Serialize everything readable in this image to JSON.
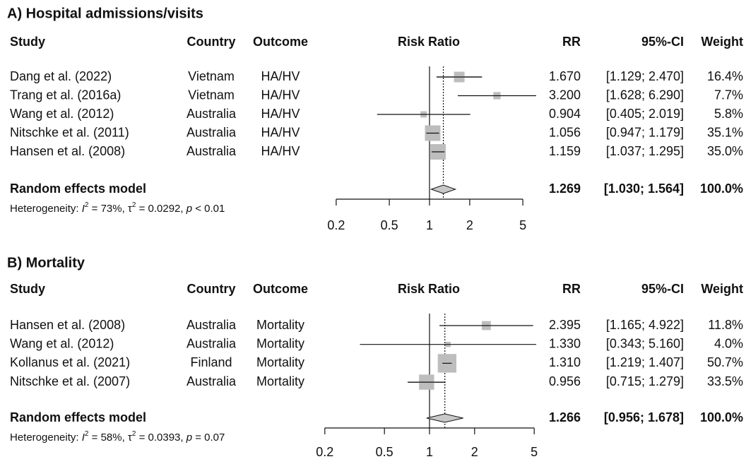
{
  "chart_data": [
    {
      "type": "forest",
      "title": "A) Hospital admissions/visits",
      "columns": {
        "study": "Study",
        "country": "Country",
        "outcome": "Outcome",
        "plot": "Risk Ratio",
        "rr": "RR",
        "ci": "95%-CI",
        "weight": "Weight"
      },
      "studies": [
        "Dang et al. (2022)",
        "Trang et al. (2016a)",
        "Wang et al. (2012)",
        "Nitschke et al. (2011)",
        "Hansen et al. (2008)"
      ],
      "countries": [
        "Vietnam",
        "Vietnam",
        "Australia",
        "Australia",
        "Australia"
      ],
      "outcomes": [
        "HA/HV",
        "HA/HV",
        "HA/HV",
        "HA/HV",
        "HA/HV"
      ],
      "rr": [
        1.67,
        3.2,
        0.904,
        1.056,
        1.159
      ],
      "rr_labels": [
        "1.670",
        "3.200",
        "0.904",
        "1.056",
        "1.159"
      ],
      "ci_low": [
        1.129,
        1.628,
        0.405,
        0.947,
        1.037
      ],
      "ci_high": [
        2.47,
        6.29,
        2.019,
        1.179,
        1.295
      ],
      "ci_labels": [
        "[1.129; 2.470]",
        "[1.628; 6.290]",
        "[0.405; 2.019]",
        "[0.947; 1.179]",
        "[1.037; 1.295]"
      ],
      "weights": [
        16.4,
        7.7,
        5.8,
        35.1,
        35.0
      ],
      "weight_labels": [
        "16.4%",
        "7.7%",
        "5.8%",
        "35.1%",
        "35.0%"
      ],
      "summary": {
        "label": "Random effects model",
        "rr": 1.269,
        "rr_label": "1.269",
        "ci_low": 1.03,
        "ci_high": 1.564,
        "ci_label": "[1.030; 1.564]",
        "weight": 100,
        "weight_label": "100.0%"
      },
      "heterogeneity": [
        "Heterogeneity: ",
        "I",
        "2",
        " = 73%, ",
        "τ",
        "2",
        " = 0.0292, ",
        "p",
        " < 0.01"
      ],
      "log_scale": true,
      "xlim": [
        0.2,
        5
      ],
      "xticks": [
        0.2,
        0.5,
        1,
        2,
        5
      ],
      "reference_line": 1,
      "colors": {
        "square": "#bdbdbd",
        "diamond": "#c8c8c8"
      }
    },
    {
      "type": "forest",
      "title": "B) Mortality",
      "columns": {
        "study": "Study",
        "country": "Country",
        "outcome": "Outcome",
        "plot": "Risk Ratio",
        "rr": "RR",
        "ci": "95%-CI",
        "weight": "Weight"
      },
      "studies": [
        "Hansen et al. (2008)",
        "Wang et al. (2012)",
        "Kollanus et al. (2021)",
        "Nitschke et al. (2007)"
      ],
      "countries": [
        "Australia",
        "Australia",
        "Finland",
        "Australia"
      ],
      "outcomes": [
        "Mortality",
        "Mortality",
        "Mortality",
        "Mortality"
      ],
      "rr": [
        2.395,
        1.33,
        1.31,
        0.956
      ],
      "rr_labels": [
        "2.395",
        "1.330",
        "1.310",
        "0.956"
      ],
      "ci_low": [
        1.165,
        0.343,
        1.219,
        0.715
      ],
      "ci_high": [
        4.922,
        5.16,
        1.407,
        1.279
      ],
      "ci_labels": [
        "[1.165; 4.922]",
        "[0.343; 5.160]",
        "[1.219; 1.407]",
        "[0.715; 1.279]"
      ],
      "weights": [
        11.8,
        4.0,
        50.7,
        33.5
      ],
      "weight_labels": [
        "11.8%",
        "4.0%",
        "50.7%",
        "33.5%"
      ],
      "summary": {
        "label": "Random effects model",
        "rr": 1.266,
        "rr_label": "1.266",
        "ci_low": 0.956,
        "ci_high": 1.678,
        "ci_label": "[0.956; 1.678]",
        "weight": 100,
        "weight_label": "100.0%"
      },
      "heterogeneity": [
        "Heterogeneity: ",
        "I",
        "2",
        " = 58%, ",
        "τ",
        "2",
        " = 0.0393, ",
        "p",
        " = 0.07"
      ],
      "log_scale": true,
      "xlim": [
        0.2,
        5
      ],
      "xticks": [
        0.2,
        0.5,
        1,
        2,
        5
      ],
      "reference_line": 1,
      "colors": {
        "square": "#bdbdbd",
        "diamond": "#c8c8c8"
      }
    }
  ]
}
